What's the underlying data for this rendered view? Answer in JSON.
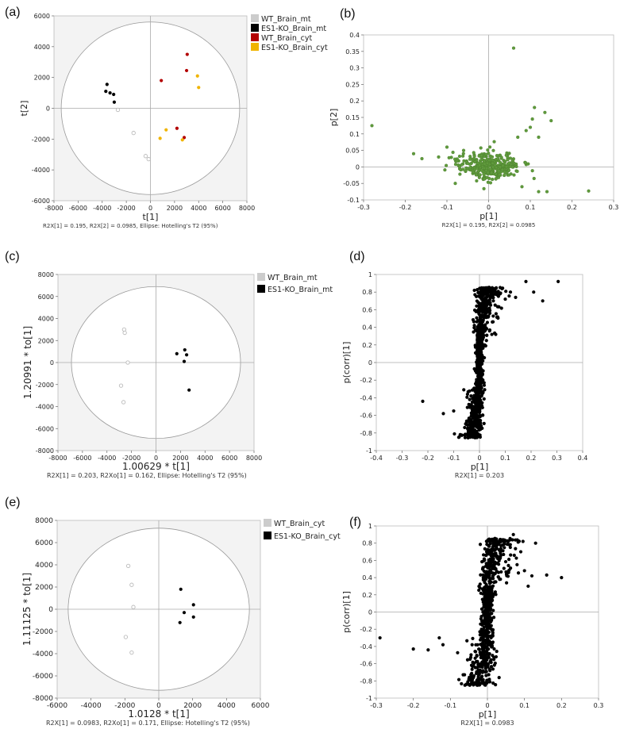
{
  "chart_data": [
    {
      "panel": "(a)",
      "type": "scatter",
      "xlabel": "t[1]",
      "ylabel": "t[2]",
      "xlim": [
        -8000,
        8000
      ],
      "ylim": [
        -6000,
        6000
      ],
      "xticks": [
        "-8000",
        "-6000",
        "-4000",
        "-2000",
        "0",
        "2000",
        "4000",
        "6000",
        "8000"
      ],
      "yticks": [
        "6000",
        "4000",
        "2000",
        "0",
        "-2000",
        "-4000",
        "-6000"
      ],
      "footnote": "R2X[1] = 0.195, R2X[2] = 0.0985, Ellipse: Hotelling's T2 (95%)",
      "ellipse": {
        "rx": 7400,
        "ry": 5600
      },
      "legend": [
        "WT_Brain_mt",
        "ES1-KO_Brain_mt",
        "WT_Brain_cyt",
        "ES1-KO_Brain_cyt"
      ],
      "series": [
        {
          "name": "WT_Brain_mt",
          "color": "#cccccc",
          "marker": "ring",
          "points": [
            [
              -2700,
              -100
            ],
            [
              -1400,
              -1600
            ],
            [
              -400,
              -3100
            ],
            [
              -150,
              -3300
            ]
          ]
        },
        {
          "name": "ES1-KO_Brain_mt",
          "color": "#000000",
          "marker": "dot",
          "points": [
            [
              -3600,
              1550
            ],
            [
              -3700,
              1100
            ],
            [
              -3350,
              1000
            ],
            [
              -3050,
              900
            ],
            [
              -3000,
              400
            ]
          ]
        },
        {
          "name": "WT_Brain_cyt",
          "color": "#b30000",
          "marker": "dot",
          "points": [
            [
              900,
              1800
            ],
            [
              3050,
              3500
            ],
            [
              3000,
              2450
            ],
            [
              2200,
              -1300
            ],
            [
              2800,
              -1900
            ]
          ]
        },
        {
          "name": "ES1-KO_Brain_cyt",
          "color": "#f0b400",
          "marker": "dot",
          "points": [
            [
              3900,
              2100
            ],
            [
              4000,
              1350
            ],
            [
              1300,
              -1400
            ],
            [
              800,
              -1950
            ],
            [
              2650,
              -2050
            ]
          ]
        }
      ]
    },
    {
      "panel": "(b)",
      "type": "scatter",
      "xlabel": "p[1]",
      "ylabel": "p[2]",
      "xlim": [
        -0.3,
        0.3
      ],
      "ylim": [
        -0.1,
        0.4
      ],
      "xticks": [
        "-0.3",
        "-0.2",
        "-0.1",
        "0",
        "0.1",
        "0.2",
        "0.3"
      ],
      "yticks": [
        "0.4",
        "0.35",
        "0.3",
        "0.25",
        "0.2",
        "0.15",
        "0.1",
        "0.05",
        "0",
        "-0.05",
        "-0.1"
      ],
      "footnote": "R2X[1] = 0.195, R2X[2] = 0.0985",
      "series": [
        {
          "color": "#5f9a3c",
          "marker": "dot",
          "points": [
            [
              0.06,
              0.36
            ],
            [
              -0.28,
              0.125
            ],
            [
              0.24,
              -0.073
            ],
            [
              0.11,
              0.18
            ],
            [
              0.15,
              0.14
            ],
            [
              0.135,
              0.165
            ],
            [
              0.1,
              0.12
            ],
            [
              0.12,
              0.09
            ],
            [
              -0.18,
              0.04
            ],
            [
              -0.16,
              0.025
            ],
            [
              -0.08,
              -0.05
            ],
            [
              0.12,
              -0.075
            ],
            [
              0.14,
              -0.075
            ],
            [
              -0.12,
              0.03
            ],
            [
              -0.1,
              0.06
            ],
            [
              -0.06,
              0.05
            ],
            [
              0.08,
              -0.06
            ],
            [
              0.07,
              0.09
            ],
            [
              0.09,
              0.11
            ],
            [
              0.105,
              0.145
            ]
          ]
        },
        {
          "color": "#5f9a3c",
          "marker": "cloud",
          "center": [
            0,
            0.0
          ],
          "spread": [
            0.04,
            0.025
          ],
          "count": 320
        }
      ]
    },
    {
      "panel": "(c)",
      "type": "scatter",
      "xlabel": "1.00629 * t[1]",
      "ylabel": "1.20991 * to[1]",
      "xlim": [
        -8000,
        8000
      ],
      "ylim": [
        -8000,
        8000
      ],
      "xticks": [
        "-8000",
        "-6000",
        "-4000",
        "-2000",
        "0",
        "2000",
        "4000",
        "6000",
        "8000"
      ],
      "yticks": [
        "8000",
        "6000",
        "4000",
        "2000",
        "0",
        "-2000",
        "-4000",
        "-6000",
        "-8000"
      ],
      "footnote": "R2X[1] = 0.203, R2Xo[1] = 0.162, Ellipse: Hotelling's T2 (95%)",
      "ellipse": {
        "rx": 6900,
        "ry": 6900
      },
      "legend": [
        "WT_Brain_mt",
        "ES1-KO_Brain_mt"
      ],
      "series": [
        {
          "name": "WT_Brain_mt",
          "color": "#cccccc",
          "marker": "ring",
          "points": [
            [
              -2600,
              3000
            ],
            [
              -2550,
              2700
            ],
            [
              -2300,
              0
            ],
            [
              -2850,
              -2100
            ],
            [
              -2650,
              -3600
            ]
          ]
        },
        {
          "name": "ES1-KO_Brain_mt",
          "color": "#000000",
          "marker": "dot",
          "points": [
            [
              1700,
              800
            ],
            [
              2350,
              1150
            ],
            [
              2500,
              700
            ],
            [
              2300,
              100
            ],
            [
              2700,
              -2500
            ]
          ]
        }
      ]
    },
    {
      "panel": "(d)",
      "type": "scatter",
      "xlabel": "p[1]",
      "ylabel": "p(corr)[1]",
      "xlim": [
        -0.4,
        0.4
      ],
      "ylim": [
        -1,
        1
      ],
      "xticks": [
        "-0.4",
        "-0.3",
        "-0.2",
        "-0.1",
        "0",
        "0.1",
        "0.2",
        "0.3",
        "0.4"
      ],
      "yticks": [
        "1",
        "0.8",
        "0.6",
        "0.4",
        "0.2",
        "0",
        "-0.2",
        "-0.4",
        "-0.6",
        "-0.8",
        "-1"
      ],
      "footnote": "R2X[1] = 0.203",
      "series": [
        {
          "color": "#000000",
          "marker": "dot",
          "points": [
            [
              0.305,
              0.92
            ],
            [
              0.18,
              0.92
            ],
            [
              0.245,
              0.7
            ],
            [
              0.21,
              0.8
            ],
            [
              0.12,
              0.8
            ],
            [
              0.14,
              0.74
            ],
            [
              -0.22,
              -0.44
            ],
            [
              -0.14,
              -0.58
            ],
            [
              -0.1,
              -0.55
            ],
            [
              0.1,
              0.72
            ],
            [
              0.06,
              0.84
            ],
            [
              0.08,
              0.78
            ]
          ]
        },
        {
          "color": "#000000",
          "marker": "sigmoid",
          "count": 900
        }
      ]
    },
    {
      "panel": "(e)",
      "type": "scatter",
      "xlabel": "1.0128 * t[1]",
      "ylabel": "1.11125 * to[1]",
      "xlim": [
        -6000,
        6000
      ],
      "ylim": [
        -8000,
        8000
      ],
      "xticks": [
        "-6000",
        "-4000",
        "-2000",
        "0",
        "2000",
        "4000",
        "6000"
      ],
      "yticks": [
        "8000",
        "6000",
        "4000",
        "2000",
        "0",
        "-2000",
        "-4000",
        "-6000",
        "-8000"
      ],
      "footnote": "R2X[1] = 0.0983, R2Xo[1] = 0.171, Ellipse: Hotelling's T2 (95%)",
      "ellipse": {
        "rx": 5350,
        "ry": 7300
      },
      "legend": [
        "WT_Brain_cyt",
        "ES1-KO_Brain_cyt"
      ],
      "series": [
        {
          "name": "WT_Brain_cyt",
          "color": "#cccccc",
          "marker": "ring",
          "points": [
            [
              -1800,
              3900
            ],
            [
              -1600,
              2200
            ],
            [
              -1500,
              200
            ],
            [
              -1950,
              -2500
            ],
            [
              -1600,
              -3900
            ]
          ]
        },
        {
          "name": "ES1-KO_Brain_cyt",
          "color": "#000000",
          "marker": "dot",
          "points": [
            [
              1300,
              1800
            ],
            [
              2050,
              400
            ],
            [
              1500,
              -300
            ],
            [
              2050,
              -700
            ],
            [
              1250,
              -1200
            ]
          ]
        }
      ]
    },
    {
      "panel": "(f)",
      "type": "scatter",
      "xlabel": "p[1]",
      "ylabel": "p(corr)[1]",
      "xlim": [
        -0.3,
        0.3
      ],
      "ylim": [
        -1,
        1
      ],
      "xticks": [
        "-0.3",
        "-0.2",
        "-0.1",
        "0",
        "0.1",
        "0.2",
        "0.3"
      ],
      "yticks": [
        "1",
        "0.8",
        "0.6",
        "0.4",
        "0.2",
        "0",
        "-0.2",
        "-0.4",
        "-0.6",
        "-0.8",
        "-1"
      ],
      "footnote": "R2X[1] = 0.0983",
      "series": [
        {
          "color": "#000000",
          "marker": "dot",
          "points": [
            [
              -0.29,
              -0.3
            ],
            [
              -0.2,
              -0.43
            ],
            [
              -0.16,
              -0.44
            ],
            [
              -0.13,
              -0.3
            ],
            [
              -0.12,
              -0.38
            ],
            [
              0.2,
              0.4
            ],
            [
              0.16,
              0.43
            ],
            [
              0.13,
              0.8
            ],
            [
              0.12,
              0.42
            ],
            [
              0.11,
              0.3
            ],
            [
              0.1,
              0.48
            ],
            [
              0.08,
              0.55
            ],
            [
              0.07,
              0.9
            ],
            [
              0.09,
              0.7
            ]
          ]
        },
        {
          "color": "#000000",
          "marker": "sigmoid",
          "count": 750
        }
      ]
    }
  ]
}
